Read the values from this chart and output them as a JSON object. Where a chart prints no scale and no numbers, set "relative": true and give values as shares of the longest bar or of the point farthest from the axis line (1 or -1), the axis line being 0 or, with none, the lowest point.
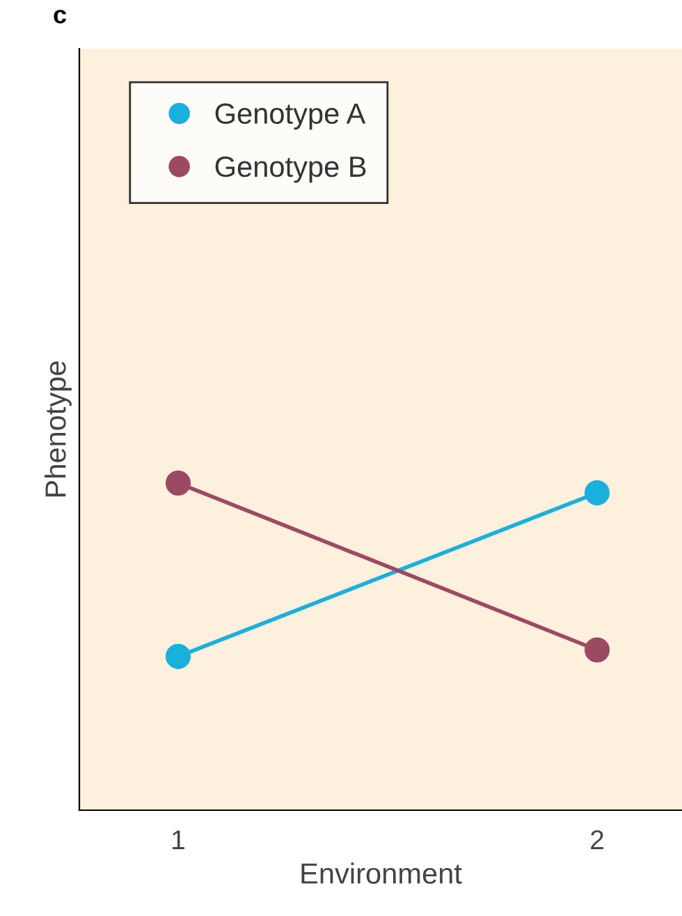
{
  "chart_data": {
    "type": "line",
    "relative": true,
    "xlabel": "Environment",
    "ylabel": "Phenotype",
    "categories": [
      "1",
      "2"
    ],
    "series": [
      {
        "name": "Genotype A",
        "color": "#1ab0de",
        "values": [
          0.47,
          0.97
        ]
      },
      {
        "name": "Genotype B",
        "color": "#9c4a64",
        "values": [
          1,
          0.49
        ]
      }
    ],
    "marker": "circle",
    "line_style": "solid",
    "legend": "top left",
    "grid": false,
    "annotations": [
      "c"
    ]
  }
}
